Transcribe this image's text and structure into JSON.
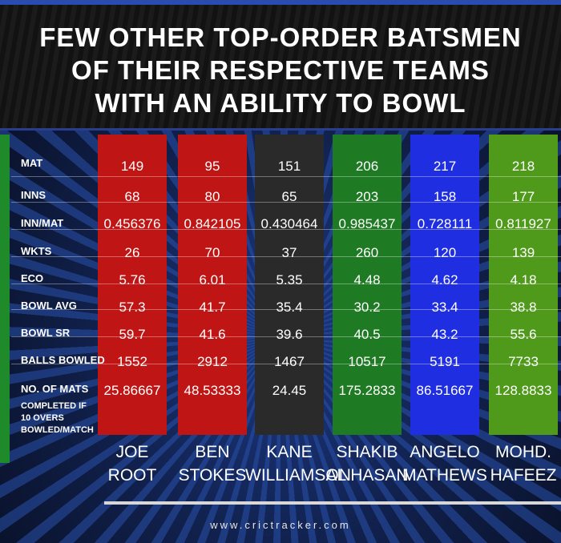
{
  "title": {
    "line1": "FEW OTHER TOP-ORDER BATSMEN",
    "line2": "OF THEIR RESPECTIVE TEAMS",
    "line3": "WITH AN ABILITY TO BOWL"
  },
  "colors": {
    "joe_root": "#c01515",
    "ben_stokes": "#c01515",
    "kane_williamson": "#2a2a2a",
    "shakib_al_hasan": "#1f7a24",
    "angelo_mathews": "#1f2ee0",
    "mohd_hafeez": "#4f9a1a"
  },
  "table": {
    "row_labels": [
      "MAT",
      "INNS",
      "INN/MAT",
      "WKTS",
      "ECO",
      "BOWL AVG",
      "BOWL SR",
      "BALLS BOWLED",
      "NO. OF MATS"
    ],
    "last_label_lines": [
      "COMPLETED IF",
      "10 OVERS",
      "BOWLED/MATCH"
    ],
    "players": [
      {
        "first": "JOE",
        "last": "ROOT",
        "values": [
          "149",
          "68",
          "0.456376",
          "26",
          "5.76",
          "57.3",
          "59.7",
          "1552",
          "25.86667"
        ]
      },
      {
        "first": "BEN",
        "last": "STOKES",
        "values": [
          "95",
          "80",
          "0.842105",
          "70",
          "6.01",
          "41.7",
          "41.6",
          "2912",
          "48.53333"
        ]
      },
      {
        "first": "KANE",
        "last": "WILLIAMSON",
        "values": [
          "151",
          "65",
          "0.430464",
          "37",
          "5.35",
          "35.4",
          "39.6",
          "1467",
          "24.45"
        ]
      },
      {
        "first": "SHAKIB",
        "last": "AL HASAN",
        "values": [
          "206",
          "203",
          "0.985437",
          "260",
          "4.48",
          "30.2",
          "40.5",
          "10517",
          "175.2833"
        ]
      },
      {
        "first": "ANGELO",
        "last": "MATHEWS",
        "values": [
          "217",
          "158",
          "0.728111",
          "120",
          "4.62",
          "33.4",
          "43.2",
          "5191",
          "86.51667"
        ]
      },
      {
        "first": "MOHD.",
        "last": "HAFEEZ",
        "values": [
          "218",
          "177",
          "0.811927",
          "139",
          "4.18",
          "38.8",
          "55.6",
          "7733",
          "128.8833"
        ]
      }
    ]
  },
  "footer": "www.crictracker.com"
}
